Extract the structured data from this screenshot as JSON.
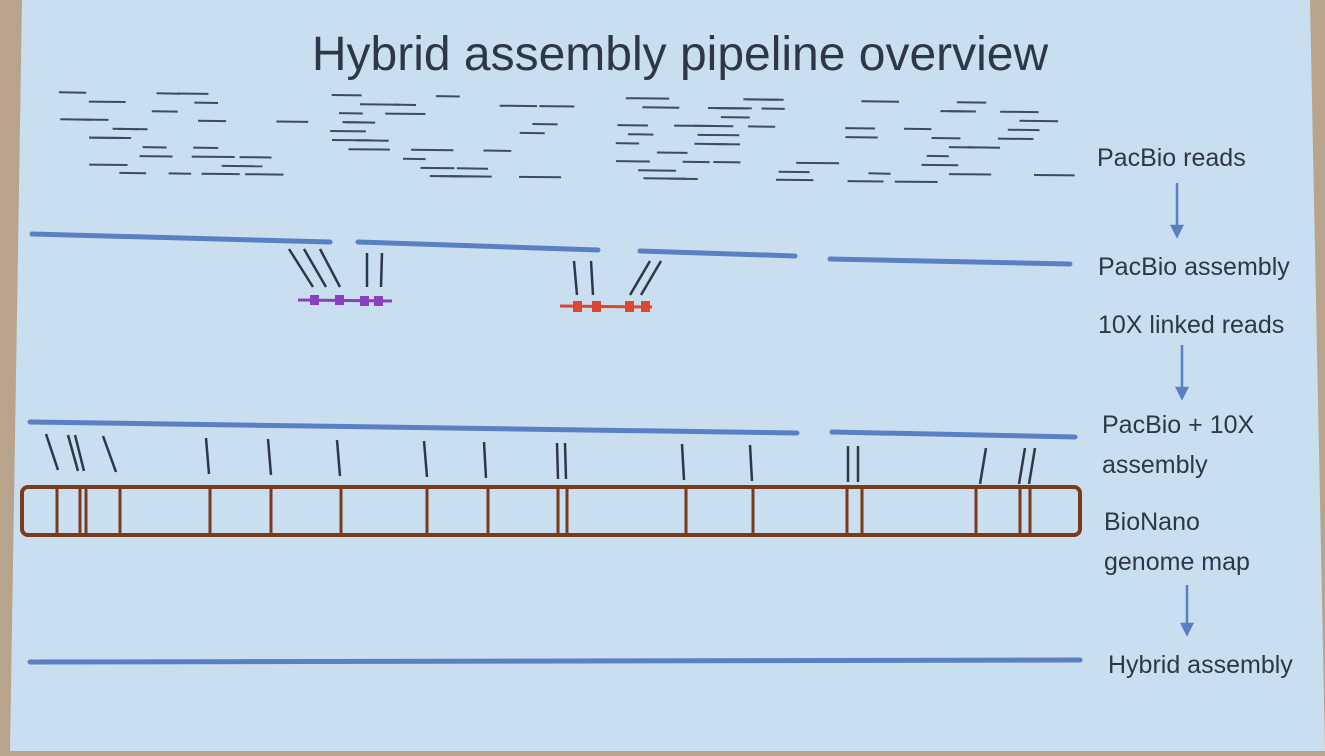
{
  "slide": {
    "title": "Hybrid assembly pipeline overview",
    "colors": {
      "background": "#c9dff0",
      "assembly_line": "#5b7fc4",
      "read_dash": "#3c4a63",
      "linked_read_purple": "#8b3fc1",
      "linked_read_red": "#e0452f",
      "genome_map_outline": "#7a3a1c",
      "text": "#2d3748"
    },
    "stages": [
      {
        "id": "pacbio-reads",
        "label": "PacBio reads"
      },
      {
        "id": "pacbio-assembly",
        "label": "PacBio assembly"
      },
      {
        "id": "linked-reads",
        "label": "10X linked reads"
      },
      {
        "id": "pacbio-10x-assembly",
        "label_lines": [
          "PacBio + 10X",
          "assembly"
        ]
      },
      {
        "id": "bionano-map",
        "label_lines": [
          "BioNano",
          "genome map"
        ]
      },
      {
        "id": "hybrid-assembly",
        "label": "Hybrid assembly"
      }
    ]
  }
}
